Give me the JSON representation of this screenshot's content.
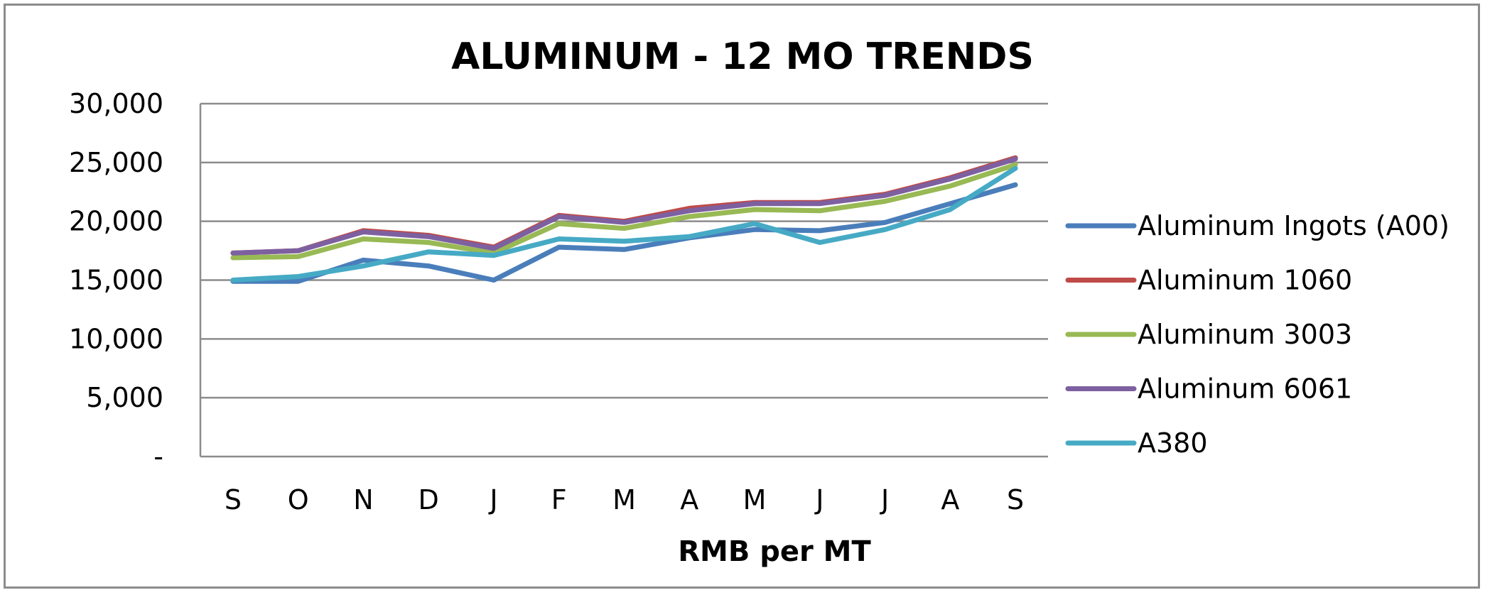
{
  "chart_data": {
    "type": "line",
    "title": "ALUMINUM - 12 MO TRENDS",
    "xlabel": "RMB per MT",
    "ylabel": "",
    "categories": [
      "S",
      "O",
      "N",
      "D",
      "J",
      "F",
      "M",
      "A",
      "M",
      "J",
      "J",
      "A",
      "S"
    ],
    "ylim": [
      0,
      30000
    ],
    "yticks": [
      0,
      5000,
      10000,
      15000,
      20000,
      25000,
      30000
    ],
    "ytick_labels": [
      "-",
      "5,000",
      "10,000",
      "15,000",
      "20,000",
      "25,000",
      "30,000"
    ],
    "grid": "horizontal",
    "legend_position": "right",
    "series": [
      {
        "name": "Aluminum Ingots (A00)",
        "color": "#4a7ebb",
        "values": [
          14900,
          14900,
          16700,
          16200,
          15000,
          17800,
          17600,
          18600,
          19300,
          19200,
          19900,
          21500,
          23100
        ]
      },
      {
        "name": "Aluminum 1060",
        "color": "#be4b48",
        "values": [
          17300,
          17500,
          19200,
          18800,
          17800,
          20500,
          20000,
          21100,
          21600,
          21600,
          22300,
          23700,
          25400
        ]
      },
      {
        "name": "Aluminum 3003",
        "color": "#98b954",
        "values": [
          16900,
          17000,
          18500,
          18200,
          17300,
          19800,
          19400,
          20400,
          21000,
          20900,
          21700,
          23000,
          24800
        ]
      },
      {
        "name": "Aluminum 6061",
        "color": "#7d60a0",
        "values": [
          17300,
          17500,
          19100,
          18700,
          17700,
          20400,
          19900,
          20900,
          21500,
          21500,
          22200,
          23600,
          25300
        ]
      },
      {
        "name": "A380",
        "color": "#46aac5",
        "values": [
          15000,
          15300,
          16200,
          17400,
          17100,
          18500,
          18300,
          18700,
          19800,
          18200,
          19300,
          21000,
          24500
        ]
      }
    ]
  }
}
